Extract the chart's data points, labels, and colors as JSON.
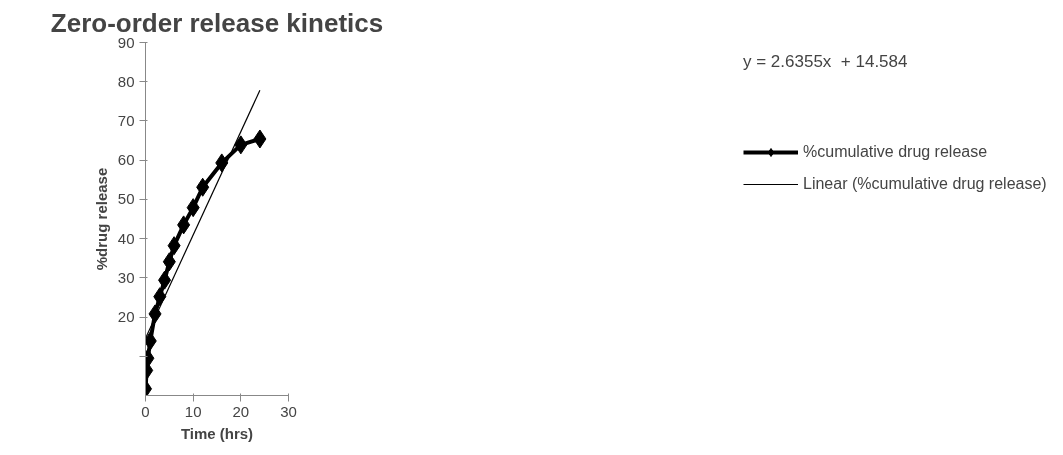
{
  "chart_data": {
    "type": "line",
    "title": "Zero-order release kinetics",
    "xlabel": "Time (hrs)",
    "ylabel": "%drug release",
    "x": [
      0,
      0.25,
      0.5,
      1,
      2,
      3,
      4,
      5,
      6,
      8,
      10,
      12,
      16,
      20,
      24
    ],
    "series": [
      {
        "name": "%cumulative drug release",
        "color": "#000000",
        "marker": "diamond",
        "values": [
          1.7,
          6.4,
          9.5,
          13.9,
          20.8,
          25.2,
          29.4,
          34.1,
          38.2,
          43.5,
          47.9,
          53.1,
          59.3,
          63.9,
          65.4
        ]
      },
      {
        "name": "Linear (%cumulative drug release)",
        "color": "#000000",
        "marker": "none",
        "x": [
          0,
          24
        ],
        "values": [
          14.6,
          77.8
        ]
      }
    ],
    "annotations": [
      "y = 2.6355x  + 14.584"
    ],
    "xlim": [
      0,
      30
    ],
    "xticks": [
      0,
      10,
      20,
      30
    ],
    "ylim": [
      0,
      90
    ],
    "yticks": [
      {
        "value": 10,
        "label": null
      },
      20,
      30,
      40,
      50,
      60,
      70,
      80,
      90
    ],
    "grid": false,
    "legend": "right"
  }
}
